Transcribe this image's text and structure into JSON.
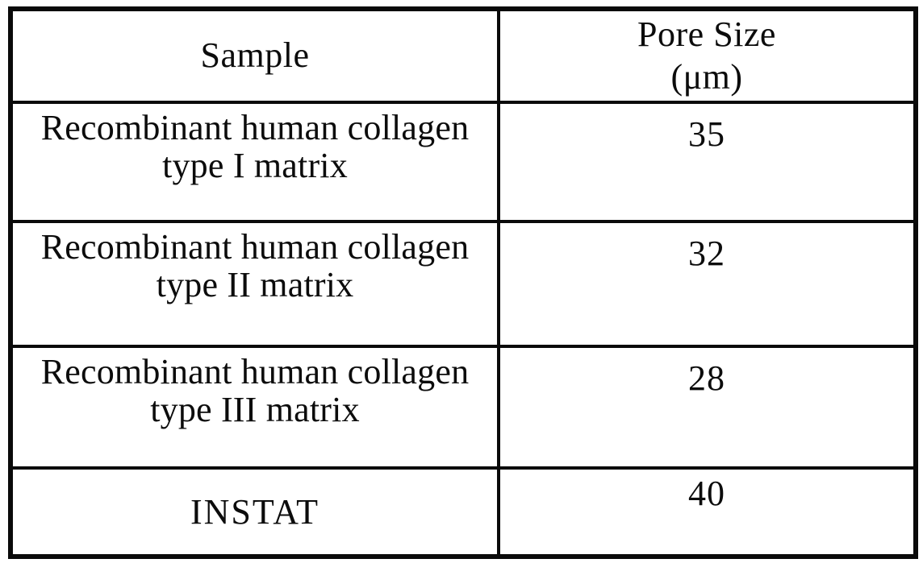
{
  "table": {
    "header": {
      "sample_label": "Sample",
      "pore_size_label": "Pore Size",
      "pore_size_unit": "(μm)"
    },
    "rows": [
      {
        "sample": "Recombinant human collagen\ntype I matrix",
        "pore_size": "35"
      },
      {
        "sample": "Recombinant human collagen\ntype II matrix",
        "pore_size": "32"
      },
      {
        "sample": "Recombinant human collagen\ntype III matrix",
        "pore_size": "28"
      },
      {
        "sample": "INSTAT",
        "pore_size": "40"
      }
    ]
  }
}
